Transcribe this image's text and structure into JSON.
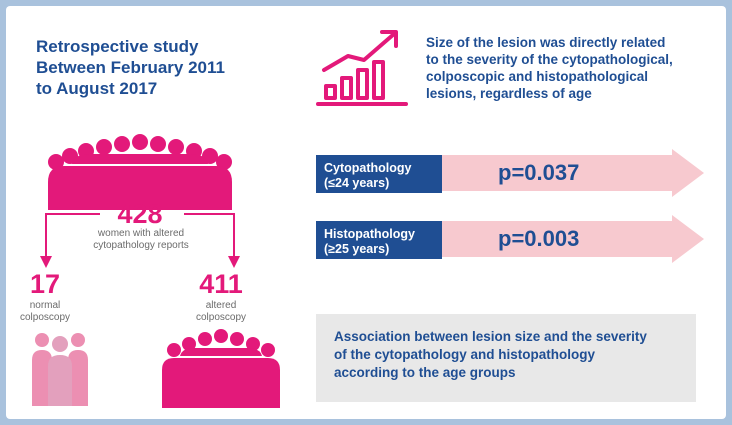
{
  "study": {
    "lines": [
      "Retrospective study",
      "Between February 2011",
      "to August 2017"
    ]
  },
  "finding": {
    "lines": [
      "Size of the lesion was directly related",
      "to the severity of the cytopathological,",
      "colposcopic and histopathological",
      "lesions, regardless of age"
    ]
  },
  "total": {
    "count": "428",
    "label_lines": [
      "women with altered",
      "cytopathology reports"
    ]
  },
  "normal": {
    "count": "17",
    "label_lines": [
      "normal",
      "colposcopy"
    ]
  },
  "altered": {
    "count": "411",
    "label_lines": [
      "altered",
      "colposcopy"
    ]
  },
  "results": [
    {
      "label_lines": [
        "Cytopathology",
        "(≤24 years)"
      ],
      "p_value": "p=0.037"
    },
    {
      "label_lines": [
        "Histopathology",
        "(≥25 years)"
      ],
      "p_value": "p=0.003"
    }
  ],
  "association": {
    "lines": [
      "Association between lesion size and the severity",
      "of the cytopathology and histopathology",
      "according to the age groups"
    ]
  },
  "colors": {
    "navy": "#1f4e93",
    "magenta": "#e3197a",
    "light_pink": "#ec8fb2",
    "arrow_pink": "#f7c9cf",
    "gray_box": "#e8e8e8",
    "frame": "#a9c2dd"
  },
  "icons": [
    "bar-growth-chart-icon",
    "people-crowd-icon",
    "arrow-down-icon",
    "arrow-right-icon"
  ]
}
